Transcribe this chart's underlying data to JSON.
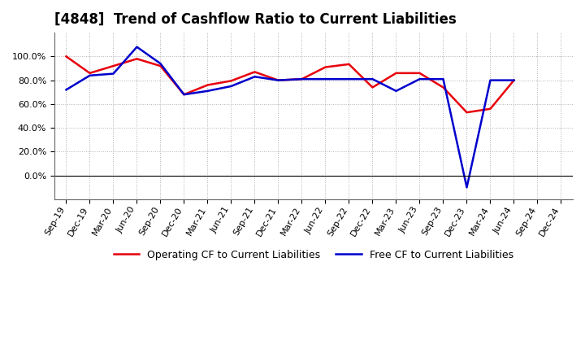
{
  "title": "[4848]  Trend of Cashflow Ratio to Current Liabilities",
  "x_labels": [
    "Sep-19",
    "Dec-19",
    "Mar-20",
    "Jun-20",
    "Sep-20",
    "Dec-20",
    "Mar-21",
    "Jun-21",
    "Sep-21",
    "Dec-21",
    "Mar-22",
    "Jun-22",
    "Sep-22",
    "Dec-22",
    "Mar-23",
    "Jun-23",
    "Sep-23",
    "Dec-23",
    "Mar-24",
    "Jun-24",
    "Sep-24",
    "Dec-24"
  ],
  "operating_cf": [
    1.0,
    0.86,
    0.92,
    0.98,
    0.92,
    0.68,
    0.76,
    0.795,
    0.87,
    0.8,
    0.81,
    0.91,
    0.935,
    0.74,
    0.86,
    0.86,
    0.74,
    0.53,
    0.56,
    0.8,
    null,
    null
  ],
  "free_cf": [
    0.72,
    0.84,
    0.855,
    1.08,
    0.94,
    0.68,
    0.71,
    0.75,
    0.83,
    0.8,
    0.81,
    0.81,
    0.81,
    0.81,
    0.71,
    0.81,
    0.81,
    -0.1,
    0.8,
    0.8,
    null,
    null
  ],
  "operating_cf_color": "#e8000d",
  "free_cf_color": "#0000cd",
  "legend_labels": [
    "Operating CF to Current Liabilities",
    "Free CF to Current Liabilities"
  ],
  "ylim": [
    -0.2,
    1.2
  ],
  "yticks": [
    0.0,
    0.2,
    0.4,
    0.6,
    0.8,
    1.0
  ],
  "background_color": "#ffffff",
  "grid_color": "#b0b0b0",
  "title_fontsize": 12,
  "axis_fontsize": 8
}
